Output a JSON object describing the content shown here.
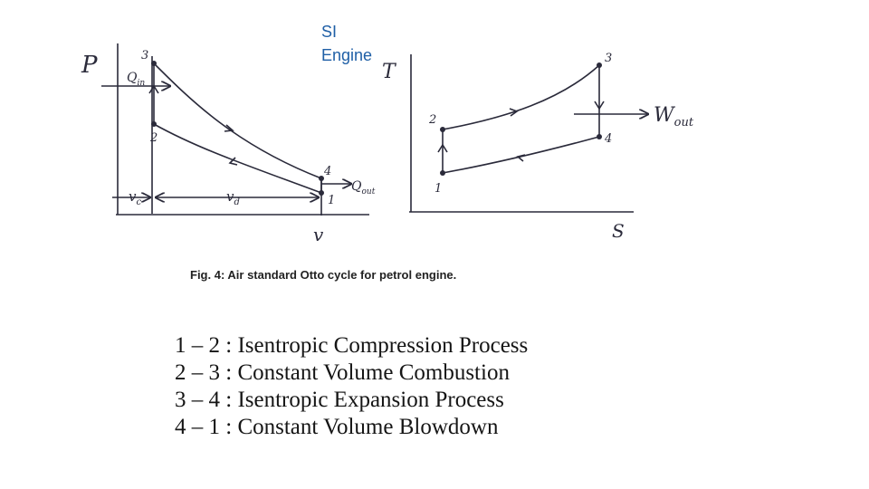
{
  "slide": {
    "title_line1": "SI",
    "title_line2": "Engine"
  },
  "pv_diagram": {
    "y_axis_label": "P",
    "x_axis_label": "v",
    "points": {
      "p1": "1",
      "p2": "2",
      "p3": "3",
      "p4": "4"
    },
    "heat_in_label": "Q",
    "heat_in_sub": "in",
    "heat_out_label": "Q",
    "heat_out_sub": "out",
    "clearance_label": "v",
    "clearance_sub": "c",
    "swept_label": "v",
    "swept_sub": "d"
  },
  "ts_diagram": {
    "y_axis_label": "T",
    "x_axis_label": "S",
    "points": {
      "p1": "1",
      "p2": "2",
      "p3": "3",
      "p4": "4"
    },
    "work_out_label": "W",
    "work_out_sub": "out"
  },
  "figure_caption": "Fig. 4: Air standard Otto cycle for petrol engine.",
  "processes": [
    {
      "range": "1 – 2",
      "separator": ":",
      "description": "Isentropic Compression Process"
    },
    {
      "range": "2 – 3",
      "separator": ":",
      "description": "Constant Volume Combustion"
    },
    {
      "range": "3 – 4",
      "separator": ":",
      "description": "Isentropic Expansion Process"
    },
    {
      "range": "4 – 1",
      "separator": ":",
      "description": "Constant Volume Blowdown"
    }
  ],
  "colors": {
    "title": "#1f5fa6",
    "ink": "#2a2a3a"
  }
}
